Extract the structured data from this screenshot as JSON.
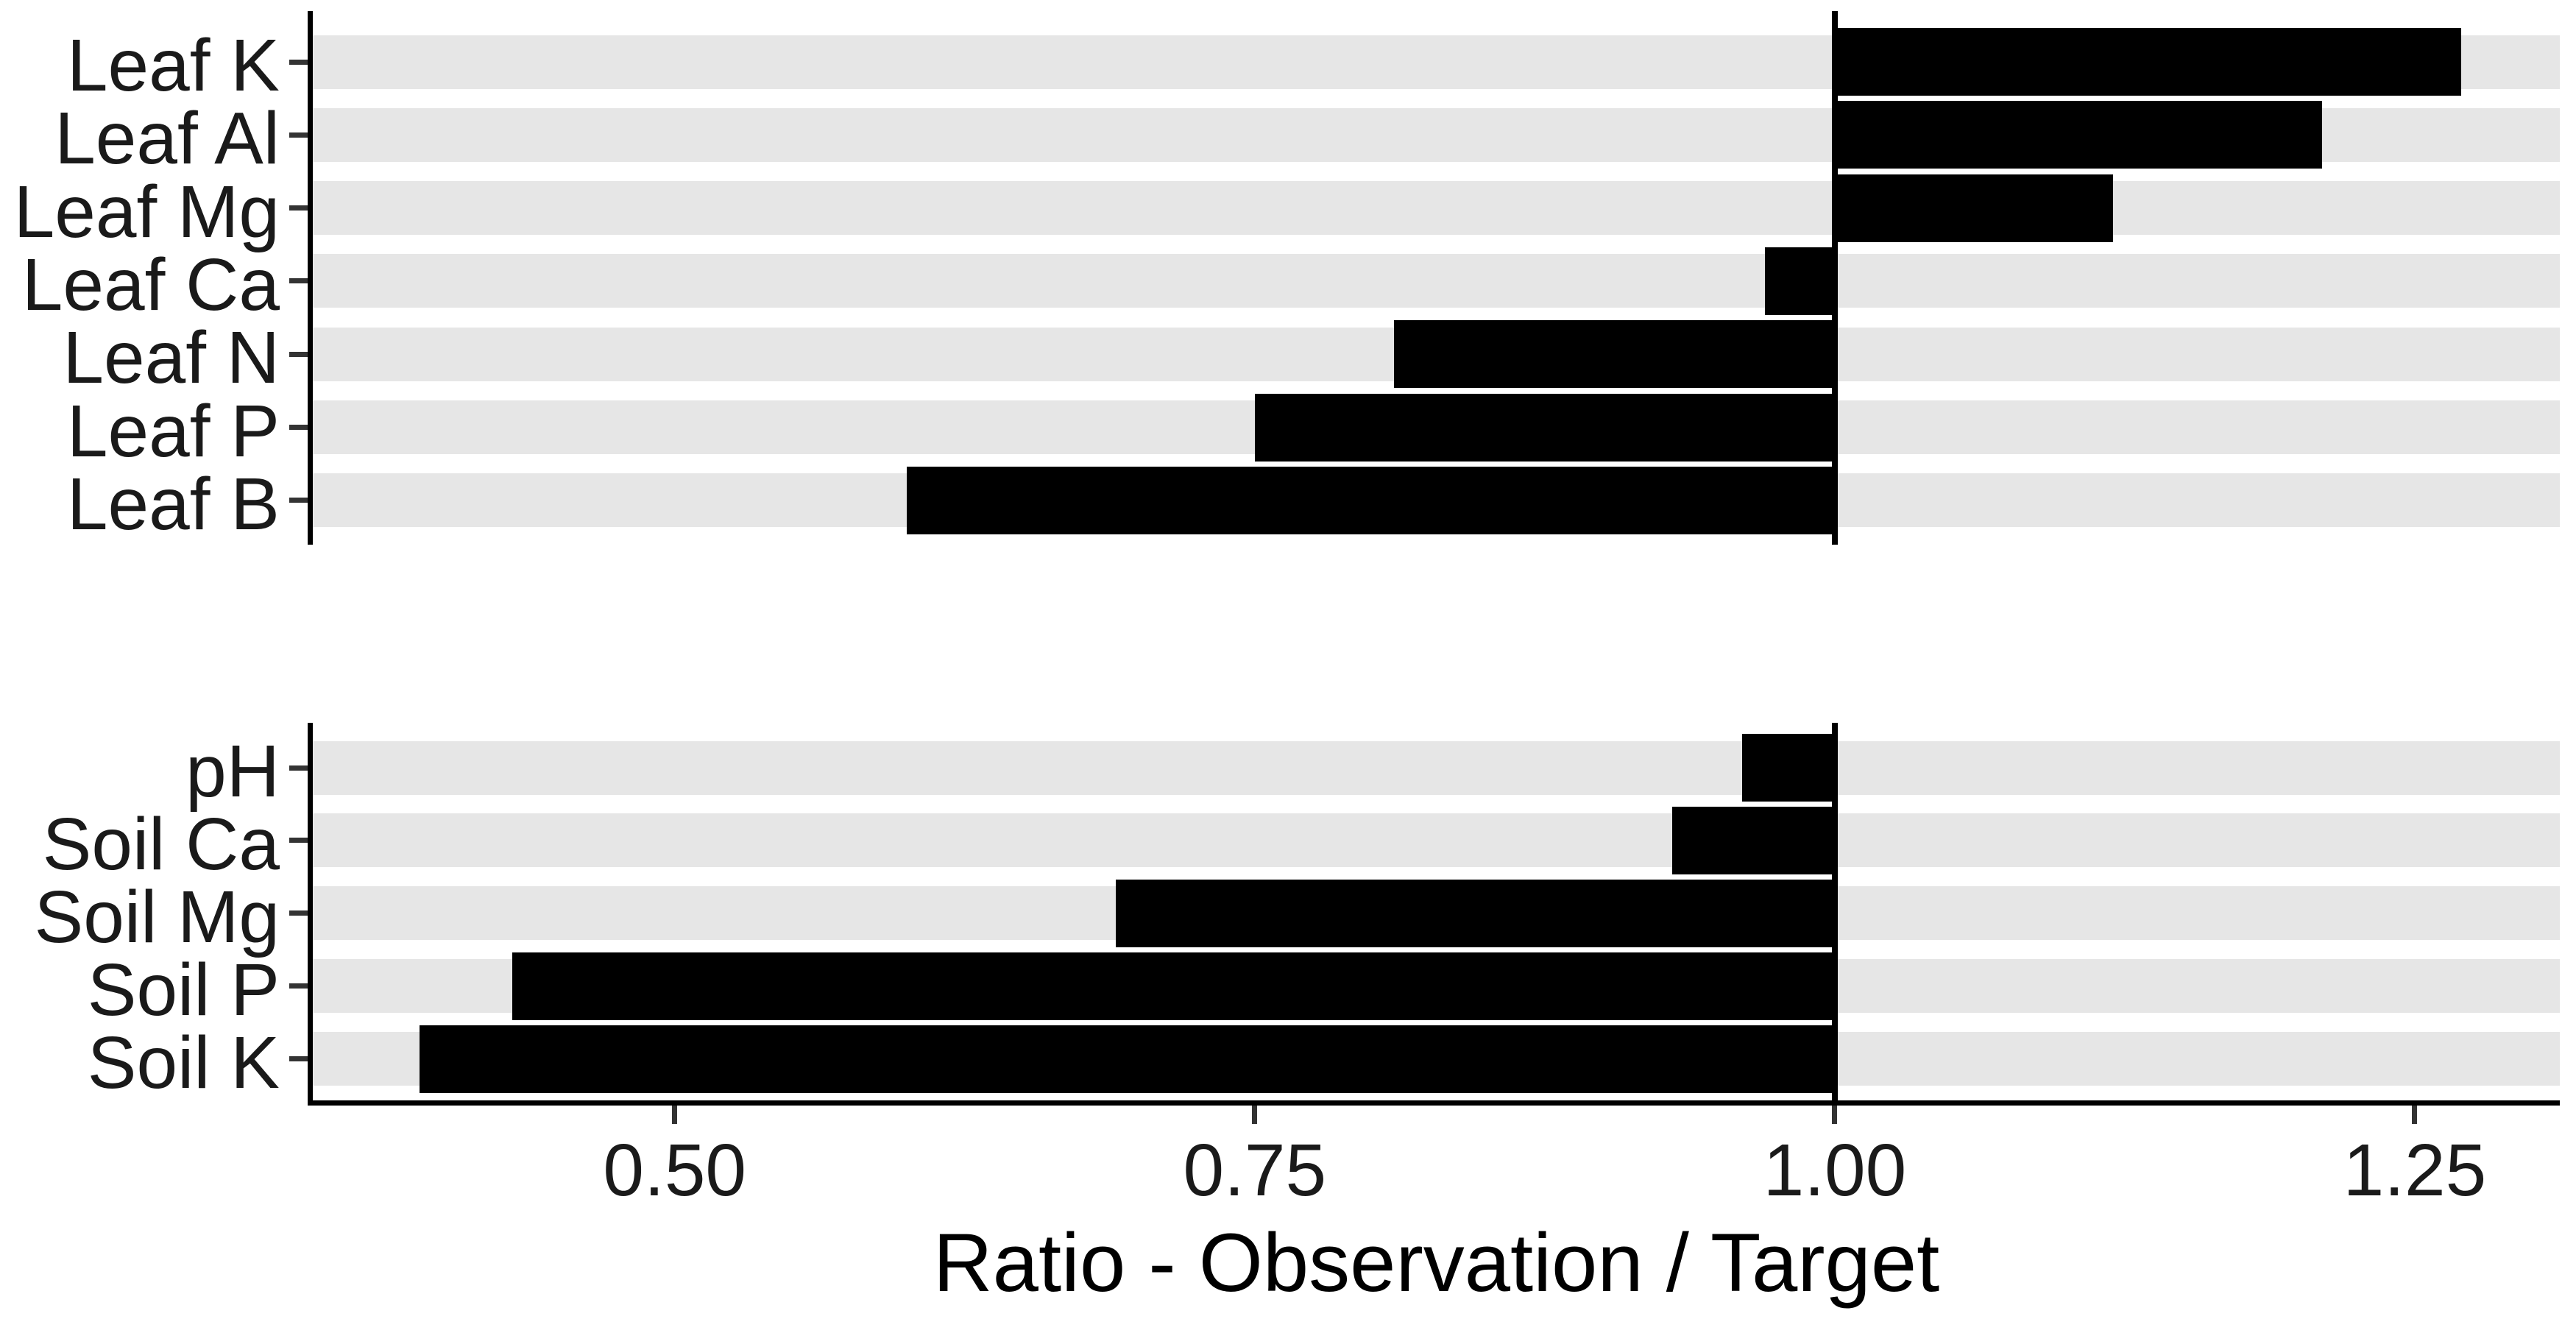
{
  "chart_data": {
    "type": "bar",
    "orientation": "horizontal",
    "title": "",
    "xlabel": "Ratio - Observation / Target",
    "ylabel": "",
    "bar_anchor": 1.0,
    "reference_x": 1.0,
    "xlim": [
      0.344,
      1.3125
    ],
    "x_ticks": [
      0.5,
      0.75,
      1.0,
      1.25
    ],
    "x_tick_labels": [
      "0.50",
      "0.75",
      "1.00",
      "1.25"
    ],
    "legend": "none",
    "grid": "row-stripes",
    "panels": [
      {
        "name": "leaf-panel",
        "categories": [
          "Leaf K",
          "Leaf Al",
          "Leaf Mg",
          "Leaf Ca",
          "Leaf N",
          "Leaf P",
          "Leaf B"
        ],
        "values": [
          1.27,
          1.21,
          1.12,
          0.97,
          0.81,
          0.75,
          0.6
        ]
      },
      {
        "name": "soil-panel",
        "categories": [
          "pH",
          "Soil Ca",
          "Soil Mg",
          "Soil P",
          "Soil K"
        ],
        "values": [
          0.96,
          0.93,
          0.69,
          0.43,
          0.39
        ]
      }
    ],
    "colors": {
      "bar": "#000000",
      "stripe": "#e6e6e6",
      "axis_line": "#000000",
      "tick_mark": "#333333",
      "tick_text": "#1a1a1a",
      "title_text": "#000000",
      "background": "#ffffff"
    }
  }
}
